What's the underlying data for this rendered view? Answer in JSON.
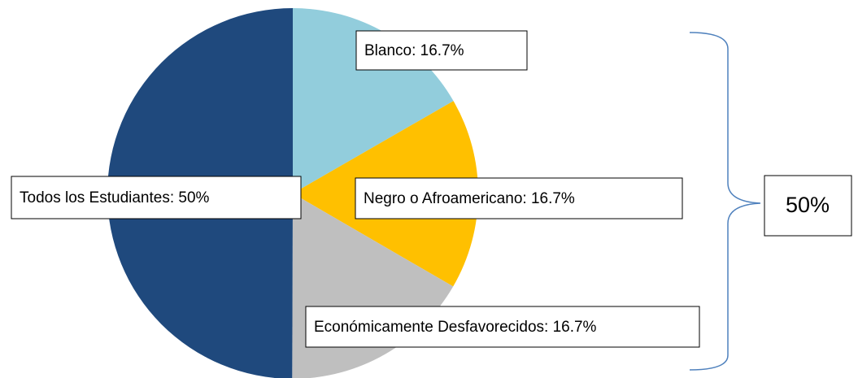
{
  "chart_data": {
    "type": "pie",
    "values": [
      16.7,
      16.7,
      16.7,
      50
    ],
    "value_labels": [
      "Blanco: 16.7%",
      "Negro o Afroamericano: 16.7%",
      "Económicamente Desfavorecidos: 16.7%",
      "Todos los Estudiantes: 50%"
    ],
    "colors": [
      "#92cddc",
      "#ffc000",
      "#bfbfbf",
      "#1f497d"
    ],
    "annotation": "50%"
  }
}
